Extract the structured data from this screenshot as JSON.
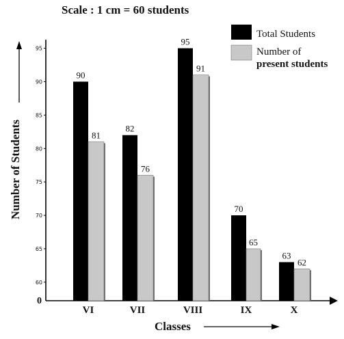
{
  "chart_data": {
    "type": "bar",
    "title": "Scale : 1 cm = 60 students",
    "xlabel": "Classes",
    "ylabel": "Number of Students",
    "categories": [
      "VI",
      "VII",
      "VIII",
      "IX",
      "X"
    ],
    "series": [
      {
        "name": "Total Students",
        "values": [
          90,
          82,
          95,
          70,
          63
        ],
        "color": "#000000"
      },
      {
        "name": "Number of present students",
        "values": [
          81,
          76,
          91,
          65,
          62
        ],
        "color": "#c8c8c8"
      }
    ],
    "yticks": [
      60,
      65,
      70,
      75,
      80,
      85,
      90,
      95
    ],
    "ylim": [
      55,
      97
    ],
    "origin_label": "0",
    "legend_position": "top-right",
    "legend_lines": [
      [
        "Total Students"
      ],
      [
        "Number of",
        "present students"
      ]
    ],
    "grid": false
  }
}
